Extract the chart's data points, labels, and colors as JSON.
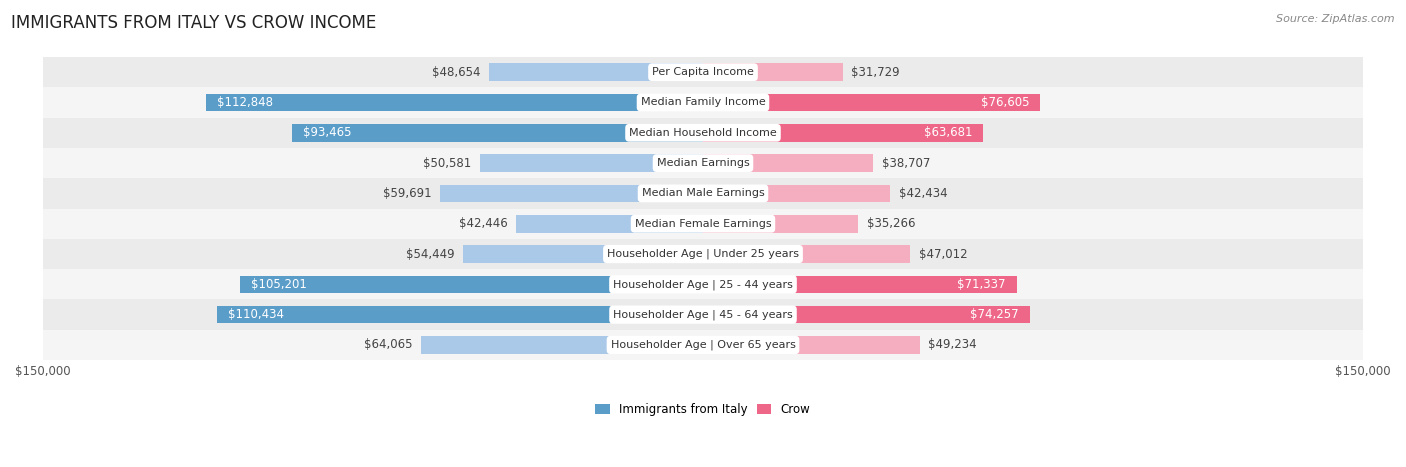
{
  "title": "IMMIGRANTS FROM ITALY VS CROW INCOME",
  "source": "Source: ZipAtlas.com",
  "categories": [
    "Per Capita Income",
    "Median Family Income",
    "Median Household Income",
    "Median Earnings",
    "Median Male Earnings",
    "Median Female Earnings",
    "Householder Age | Under 25 years",
    "Householder Age | 25 - 44 years",
    "Householder Age | 45 - 64 years",
    "Householder Age | Over 65 years"
  ],
  "italy_values": [
    48654,
    112848,
    93465,
    50581,
    59691,
    42446,
    54449,
    105201,
    110434,
    64065
  ],
  "crow_values": [
    31729,
    76605,
    63681,
    38707,
    42434,
    35266,
    47012,
    71337,
    74257,
    49234
  ],
  "italy_color_dark": "#5b9dc9",
  "italy_color_light": "#aac8e8",
  "crow_color_dark": "#ee6688",
  "crow_color_light": "#f5aec0",
  "italy_inside_threshold": 70000,
  "crow_inside_threshold": 60000,
  "max_value": 150000,
  "xlabel_left": "$150,000",
  "xlabel_right": "$150,000",
  "legend_italy": "Immigrants from Italy",
  "legend_crow": "Crow",
  "bar_height": 0.58,
  "row_bg_colors": [
    "#ebebeb",
    "#f8f8f8",
    "#f0f0f0",
    "#f8f8f8",
    "#ebebeb",
    "#f8f8f8",
    "#f0f0f0",
    "#f8f8f8",
    "#ebebeb",
    "#f8f8f8"
  ],
  "background_color": "#ffffff",
  "title_fontsize": 12,
  "label_fontsize": 8.5,
  "value_fontsize": 8.5,
  "source_fontsize": 8,
  "cat_fontsize": 8
}
